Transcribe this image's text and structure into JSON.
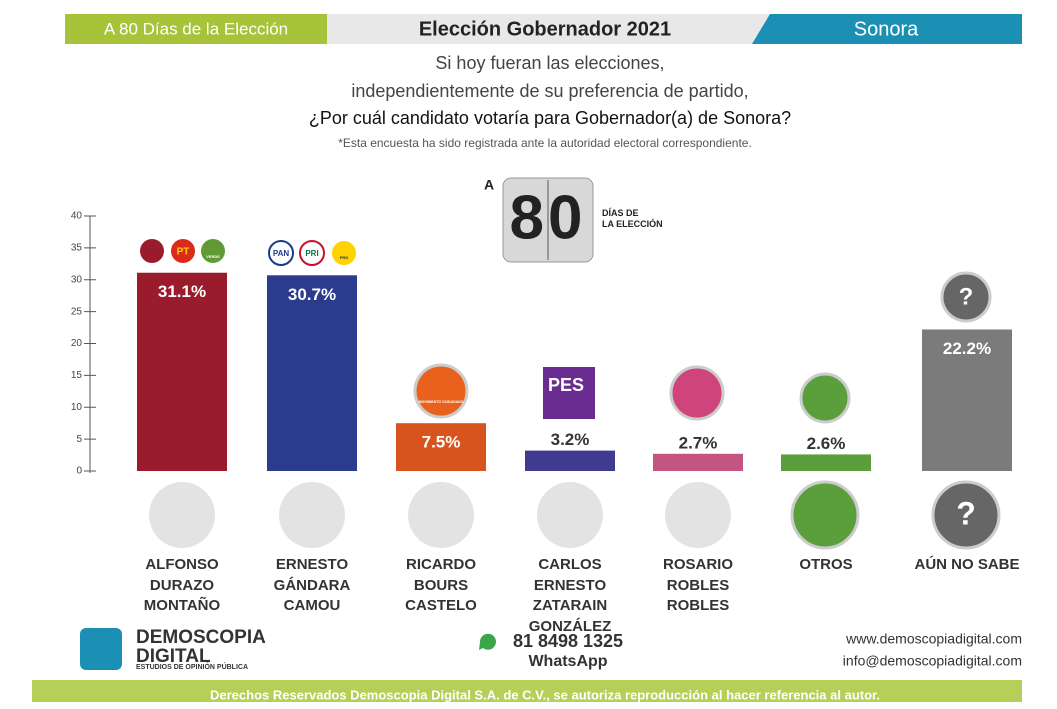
{
  "header": {
    "left": "A 80 Días de la Elección",
    "center": "Elección Gobernador 2021",
    "right": "Sonora"
  },
  "question": {
    "line1": "Si hoy fueran las elecciones,",
    "line2": "independientemente de su preferencia de partido,",
    "line3": "¿Por cuál candidato votaría para Gobernador(a) de Sonora?",
    "note": "*Esta encuesta ha sido registrada ante la autoridad electoral correspondiente."
  },
  "countdown": {
    "prefix": "A",
    "number": "80",
    "suffix": "DÍAS DE\nLA ELECCIÓN"
  },
  "chart_data": {
    "type": "bar",
    "categories": [
      "ALFONSO\nDURAZO\nMONTAÑO",
      "ERNESTO\nGÁNDARA\nCAMOU",
      "RICARDO\nBOURS\nCASTELO",
      "CARLOS\nERNESTO\nZATARAIN\nGONZÁLEZ",
      "ROSARIO\nROBLES\nROBLES",
      "OTROS",
      "AÚN NO SABE"
    ],
    "values": [
      31.1,
      30.7,
      7.5,
      3.2,
      2.7,
      2.6,
      22.2
    ],
    "value_labels": [
      "31.1%",
      "30.7%",
      "7.5%",
      "3.2%",
      "2.7%",
      "2.6%",
      "22.2%"
    ],
    "colors": [
      "#9a1b2b",
      "#2b3b8e",
      "#d8541f",
      "#3f3b90",
      "#c45582",
      "#5b9f3c",
      "#7b7b7b"
    ],
    "ylim": [
      0,
      40
    ],
    "yticks": [
      0,
      5,
      10,
      15,
      20,
      25,
      30,
      35,
      40
    ]
  },
  "logos": {
    "pt": "PT",
    "verde": "VERDE",
    "pan": "PAN",
    "pri": "PRI",
    "prd": "PRD",
    "mc": "MOVIMIENTO CIUDADANO",
    "pes": "PES"
  },
  "footer": {
    "brand": "DEMOSCOPIA\nDIGITAL",
    "tagline": "ESTUDIOS DE OPINIÓN PÚBLICA",
    "phone": "81 8498 1325",
    "whatsapp": "WhatsApp",
    "web": "www.demoscopiadigital.com",
    "email": "info@demoscopiadigital.com",
    "rights": "Derechos Reservados Demoscopia Digital S.A. de C.V., se autoriza reproducción al hacer referencia al autor."
  }
}
